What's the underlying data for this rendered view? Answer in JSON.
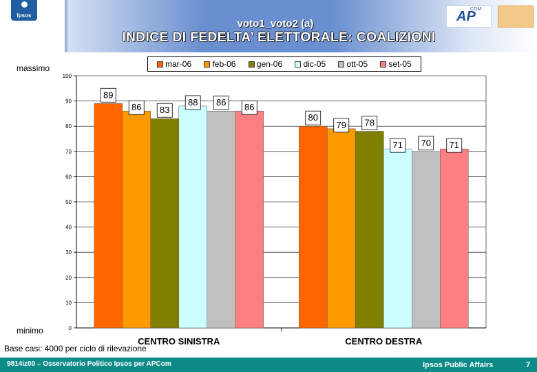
{
  "header": {
    "subtitle": "voto1_voto2 (a)",
    "title": "INDICE DI FEDELTA’ ELETTORALE: COALIZIONI",
    "ipsos_logo_text": "Ipsos",
    "apcom_logo_text": "AP",
    "apcom_logo_sup": "COM"
  },
  "axis_notes": {
    "top": "massimo",
    "bottom": "minimo"
  },
  "chart_data": {
    "type": "bar",
    "categories": [
      "CENTRO SINISTRA",
      "CENTRO DESTRA"
    ],
    "series": [
      {
        "name": "mar-06",
        "color": "#ff6600",
        "values": [
          89,
          80
        ]
      },
      {
        "name": "feb-06",
        "color": "#ff9900",
        "values": [
          86,
          79
        ]
      },
      {
        "name": "gen-06",
        "color": "#808000",
        "values": [
          83,
          78
        ]
      },
      {
        "name": "dic-05",
        "color": "#ccffff",
        "values": [
          88,
          71
        ]
      },
      {
        "name": "ott-05",
        "color": "#c0c0c0",
        "values": [
          86,
          70
        ]
      },
      {
        "name": "set-05",
        "color": "#ff8080",
        "values": [
          86,
          71
        ]
      }
    ],
    "ylim": [
      0,
      100
    ],
    "yticks": [
      0,
      10,
      20,
      30,
      40,
      50,
      60,
      70,
      80,
      90,
      100
    ],
    "grid": true,
    "legend": "top"
  },
  "base_note": "Base casi: 4000 per ciclo di rilevazione",
  "footer": {
    "left": "9814iz00 – Osservatorio Politico Ipsos per APCom",
    "right": "Ipsos Public Affairs",
    "page": "7"
  }
}
